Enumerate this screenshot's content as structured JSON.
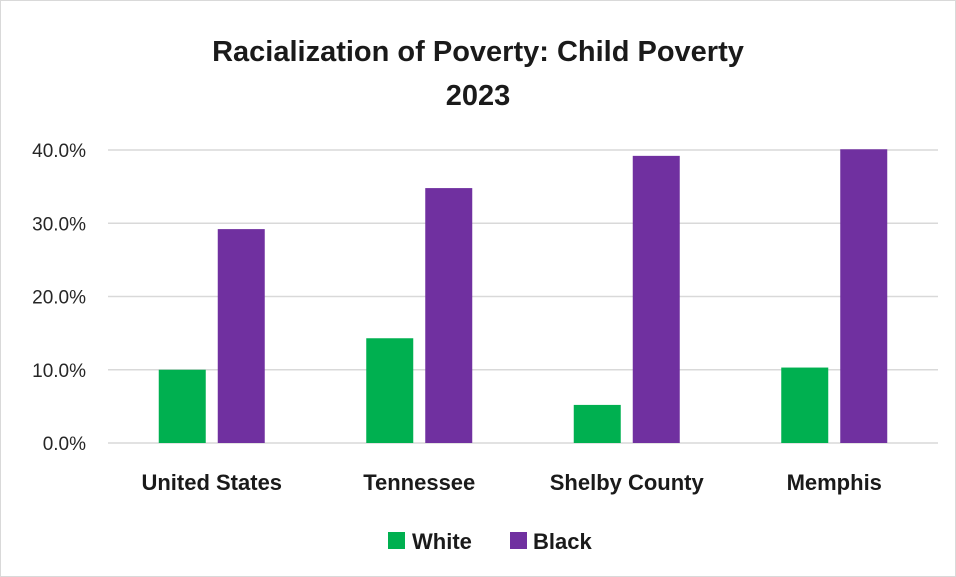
{
  "chart_data": {
    "type": "bar",
    "title_line1": "Racialization of Poverty: Child Poverty",
    "title_line2": "2023",
    "categories": [
      "United States",
      "Tennessee",
      "Shelby County",
      "Memphis"
    ],
    "series": [
      {
        "name": "White",
        "color": "#00b050",
        "values": [
          10.0,
          14.3,
          5.2,
          10.3
        ]
      },
      {
        "name": "Black",
        "color": "#7030a0",
        "values": [
          29.2,
          34.8,
          39.2,
          40.1
        ]
      }
    ],
    "ylim": [
      0,
      40
    ],
    "yticks": [
      0,
      10,
      20,
      30,
      40
    ],
    "ytick_labels": [
      "0.0%",
      "10.0%",
      "20.0%",
      "30.0%",
      "40.0%"
    ],
    "grid": true,
    "legend_position": "bottom"
  }
}
